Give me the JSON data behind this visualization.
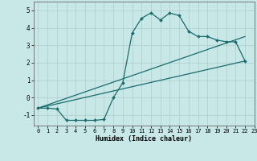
{
  "xlabel": "Humidex (Indice chaleur)",
  "xlim": [
    -0.5,
    23
  ],
  "ylim": [
    -1.6,
    5.5
  ],
  "xticks": [
    0,
    1,
    2,
    3,
    4,
    5,
    6,
    7,
    8,
    9,
    10,
    11,
    12,
    13,
    14,
    15,
    16,
    17,
    18,
    19,
    20,
    21,
    22,
    23
  ],
  "yticks": [
    -1,
    0,
    1,
    2,
    3,
    4,
    5
  ],
  "background_color": "#c8e8e8",
  "grid_color": "#b0cccc",
  "line_color": "#1a6b6b",
  "curve_x": [
    0,
    1,
    2,
    3,
    4,
    5,
    6,
    7,
    8,
    9,
    10,
    11,
    12,
    13,
    14,
    15,
    16,
    17,
    18,
    19,
    20,
    21,
    22
  ],
  "curve_y": [
    -0.6,
    -0.6,
    -0.65,
    -1.3,
    -1.3,
    -1.3,
    -1.3,
    -1.25,
    0.0,
    0.85,
    3.7,
    4.55,
    4.85,
    4.45,
    4.85,
    4.7,
    3.8,
    3.5,
    3.5,
    3.3,
    3.2,
    3.2,
    2.1
  ],
  "line2_x": [
    0,
    22
  ],
  "line2_y": [
    -0.6,
    2.1
  ],
  "line3_x": [
    0,
    22
  ],
  "line3_y": [
    -0.6,
    3.5
  ]
}
